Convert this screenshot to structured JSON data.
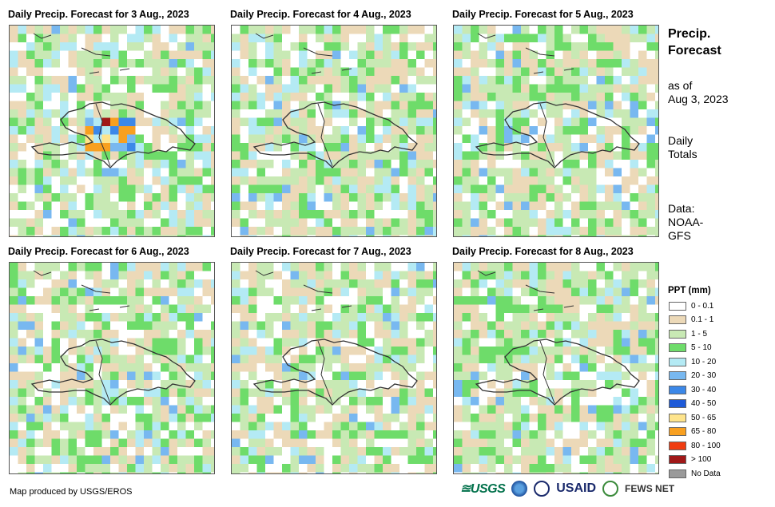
{
  "panels": [
    {
      "title": "Daily Precip. Forecast for 3 Aug., 2023"
    },
    {
      "title": "Daily Precip. Forecast for 4 Aug., 2023"
    },
    {
      "title": "Daily Precip. Forecast for 5 Aug., 2023"
    },
    {
      "title": "Daily Precip. Forecast for 6 Aug., 2023"
    },
    {
      "title": "Daily Precip. Forecast for 7 Aug., 2023"
    },
    {
      "title": "Daily Precip. Forecast for 8 Aug., 2023"
    }
  ],
  "side": {
    "title_line1": "Precip.",
    "title_line2": "Forecast",
    "asof_line1": "as of",
    "asof_line2": "Aug 3, 2023",
    "totals_line1": "Daily",
    "totals_line2": "Totals",
    "data_line1": "Data:",
    "data_line2": "NOAA-",
    "data_line3": "GFS"
  },
  "legend": {
    "title": "PPT (mm)",
    "items": [
      {
        "label": "0 - 0.1",
        "color": "#ffffff"
      },
      {
        "label": "0.1 - 1",
        "color": "#ecd9b8"
      },
      {
        "label": "1 - 5",
        "color": "#c8e9b4"
      },
      {
        "label": "5 - 10",
        "color": "#6edc6a"
      },
      {
        "label": "10 - 20",
        "color": "#b4eaf4"
      },
      {
        "label": "20 - 30",
        "color": "#78b8f0"
      },
      {
        "label": "30 - 40",
        "color": "#3c88e8"
      },
      {
        "label": "40 - 50",
        "color": "#1e5ad8"
      },
      {
        "label": "50 - 65",
        "color": "#fee48c"
      },
      {
        "label": "65 - 80",
        "color": "#f8a020"
      },
      {
        "label": "80 - 100",
        "color": "#f03c10"
      },
      {
        "label": "> 100",
        "color": "#a01818"
      },
      {
        "label": "No Data",
        "color": "#9a9a9a"
      }
    ]
  },
  "footer": {
    "credit": "Map produced by USGS/EROS",
    "logo_usgs": "≊USGS",
    "logo_usaid": "USAID",
    "logo_fews": "FEWS NET"
  }
}
